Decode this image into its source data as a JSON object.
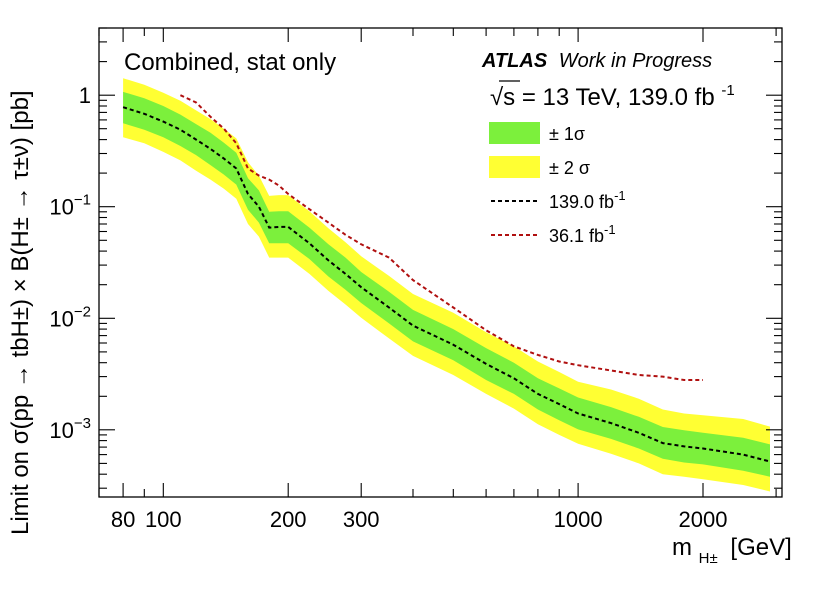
{
  "chart_data": {
    "type": "area",
    "title": "",
    "annotations": {
      "left": "Combined, stat only",
      "experiment": "ATLAS",
      "status": "Work in Progress",
      "energy": "√s = 13 TeV, 139.0 fb",
      "energy_sup": "-1"
    },
    "xlabel": {
      "main": "m",
      "sub": "H±",
      "unit": "[GeV]"
    },
    "ylabel": "Limit on σ(pp → tbH±) × B(H± → τ±ν) [pb]",
    "xscale": "log",
    "yscale": "log",
    "xlim": [
      70,
      3100
    ],
    "ylim": [
      0.00025,
      4.0
    ],
    "x_ticks": [
      80,
      100,
      200,
      300,
      1000,
      2000
    ],
    "x_tick_labels": [
      "80",
      "100",
      "200",
      "300",
      "1000",
      "2000"
    ],
    "y_ticks": [
      1,
      0.1,
      0.01,
      0.001
    ],
    "y_tick_labels": [
      {
        "base": "1",
        "exp": ""
      },
      {
        "base": "10",
        "exp": "−1"
      },
      {
        "base": "10",
        "exp": "−2"
      },
      {
        "base": "10",
        "exp": "−3"
      }
    ],
    "grid": false,
    "legend": {
      "placement": "top-right",
      "entries": [
        {
          "label": "± 1σ",
          "sup": "",
          "color": "#7cf03c",
          "kind": "box"
        },
        {
          "label": "± 2 σ",
          "sup": "",
          "color": "#ffff33",
          "kind": "box"
        },
        {
          "label": "139.0 fb",
          "sup": "-1",
          "color": "#000000",
          "kind": "dashed"
        },
        {
          "label": "36.1 fb",
          "sup": "-1",
          "color": "#b01010",
          "kind": "dashed"
        }
      ]
    },
    "x": [
      80,
      90,
      100,
      110,
      120,
      130,
      140,
      150,
      160,
      170,
      180,
      190,
      200,
      225,
      250,
      275,
      300,
      350,
      400,
      500,
      600,
      700,
      800,
      900,
      1000,
      1200,
      1400,
      1600,
      1800,
      2000,
      2500,
      2900
    ],
    "series": [
      {
        "name": "139.0 fb-1",
        "color": "#000000",
        "values": [
          0.78,
          0.68,
          0.58,
          0.49,
          0.4,
          0.33,
          0.27,
          0.22,
          0.13,
          0.1,
          0.065,
          0.066,
          0.066,
          0.047,
          0.033,
          0.025,
          0.019,
          0.0125,
          0.0086,
          0.0058,
          0.0039,
          0.0029,
          0.0021,
          0.0017,
          0.0014,
          0.00115,
          0.00094,
          0.00076,
          0.00071,
          0.00068,
          0.0006,
          0.00052
        ]
      },
      {
        "name": "36.1 fb-1",
        "color": "#b01010",
        "values": [
          null,
          null,
          null,
          1.0,
          0.86,
          0.64,
          0.5,
          0.37,
          0.22,
          0.19,
          0.175,
          0.155,
          0.13,
          0.095,
          0.072,
          0.056,
          0.046,
          0.035,
          0.022,
          0.0125,
          0.0078,
          0.0056,
          0.0047,
          0.0041,
          0.0038,
          0.0034,
          0.0031,
          0.003,
          0.0028,
          0.0028,
          null,
          null
        ]
      }
    ],
    "bands": [
      {
        "name": "± 2 σ",
        "color": "#ffff33",
        "upper": [
          1.42,
          1.24,
          1.05,
          0.89,
          0.73,
          0.61,
          0.5,
          0.41,
          0.25,
          0.19,
          0.125,
          0.127,
          0.127,
          0.091,
          0.064,
          0.048,
          0.036,
          0.024,
          0.0165,
          0.0112,
          0.0075,
          0.0056,
          0.0041,
          0.0033,
          0.0027,
          0.0023,
          0.0019,
          0.00152,
          0.0014,
          0.00135,
          0.00125,
          0.00107
        ],
        "lower": [
          0.42,
          0.37,
          0.31,
          0.26,
          0.21,
          0.175,
          0.145,
          0.118,
          0.07,
          0.054,
          0.035,
          0.035,
          0.035,
          0.025,
          0.0176,
          0.0133,
          0.0101,
          0.0066,
          0.0046,
          0.0031,
          0.0021,
          0.00155,
          0.00112,
          0.0009,
          0.00075,
          0.00061,
          0.0005,
          0.0004,
          0.00038,
          0.00036,
          0.00032,
          0.00028
        ]
      },
      {
        "name": "± 1σ",
        "color": "#7cf03c",
        "upper": [
          1.07,
          0.94,
          0.8,
          0.67,
          0.55,
          0.46,
          0.375,
          0.305,
          0.18,
          0.14,
          0.09,
          0.091,
          0.091,
          0.065,
          0.046,
          0.035,
          0.026,
          0.0173,
          0.0119,
          0.008,
          0.0054,
          0.004,
          0.0029,
          0.00235,
          0.00195,
          0.0016,
          0.00131,
          0.00106,
          0.00099,
          0.00094,
          0.00085,
          0.00074
        ],
        "lower": [
          0.56,
          0.49,
          0.42,
          0.35,
          0.29,
          0.236,
          0.194,
          0.158,
          0.094,
          0.072,
          0.047,
          0.047,
          0.047,
          0.034,
          0.0237,
          0.018,
          0.0137,
          0.009,
          0.0062,
          0.0042,
          0.0028,
          0.0021,
          0.00152,
          0.00122,
          0.00101,
          0.00083,
          0.00068,
          0.00055,
          0.00051,
          0.00049,
          0.00043,
          0.00038
        ]
      }
    ]
  }
}
